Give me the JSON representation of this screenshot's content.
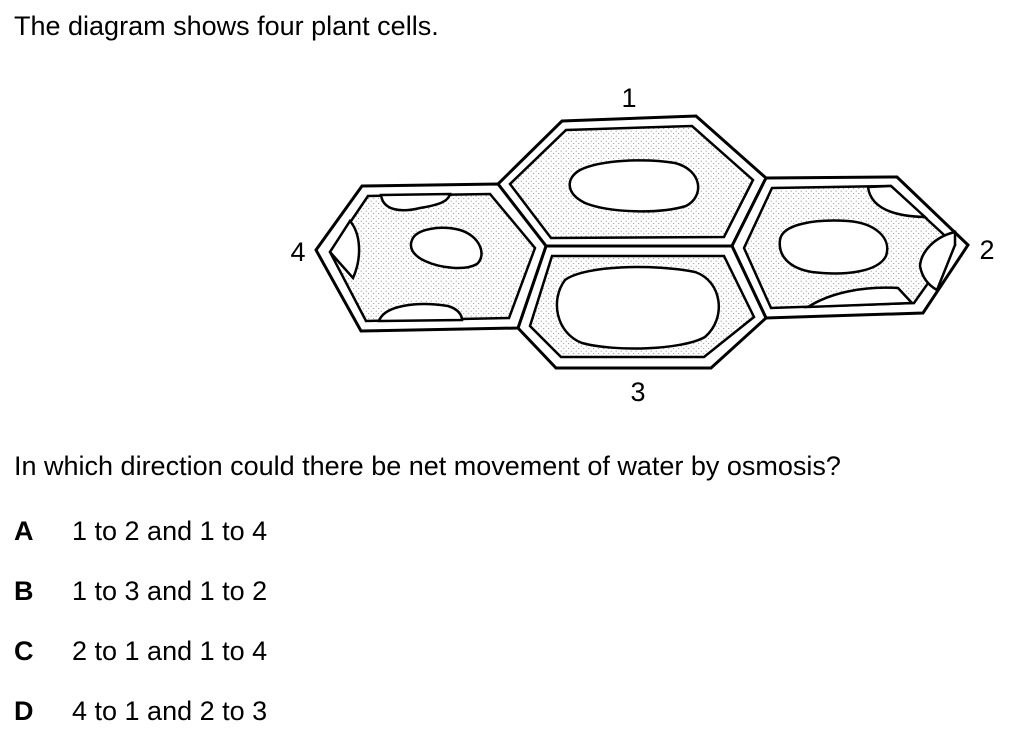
{
  "question": {
    "intro": "The diagram shows four plant cells.",
    "prompt": "In which direction could there be net movement of water by osmosis?"
  },
  "diagram": {
    "cell_labels": {
      "cell_1": "1",
      "cell_2": "2",
      "cell_3": "3",
      "cell_4": "4"
    },
    "colors": {
      "outline": "#000000",
      "cytoplasm_dots": "#8a8a8a",
      "background": "#ffffff"
    }
  },
  "options": [
    {
      "letter": "A",
      "text": "1 to 2 and 1 to 4"
    },
    {
      "letter": "B",
      "text": "1 to 3 and 1 to 2"
    },
    {
      "letter": "C",
      "text": "2 to 1 and 1 to 4"
    },
    {
      "letter": "D",
      "text": "4 to 1 and 2 to 3"
    }
  ]
}
